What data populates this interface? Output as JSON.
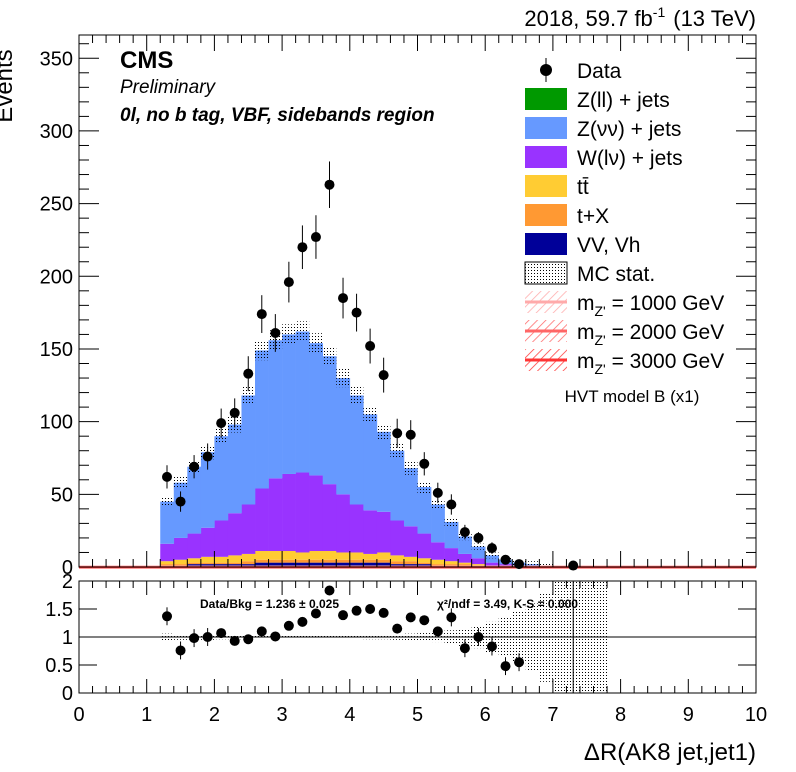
{
  "header": {
    "lumi_prefix": "2018, 59.7 fb",
    "lumi_sup": "-1",
    "lumi_suffix": "(13 TeV)"
  },
  "labels": {
    "cms": "CMS",
    "preliminary": "Preliminary",
    "region": "0l, no b tag, VBF, sidebands region",
    "hvt_note": "HVT model B (x1)",
    "ratio_text": "Data/Bkg = 1.236 ± 0.025",
    "chi2_text": "χ²/ndf = 3.49,   K-S = 0.000"
  },
  "colors": {
    "zll": "#009900",
    "znn": "#6699ff",
    "wln": "#9933ff",
    "ttbar": "#ffcc33",
    "tX": "#ff9933",
    "vv": "#000099",
    "signal1": "#ffaaaa",
    "signal2": "#ff6666",
    "signal3": "#ff3333"
  },
  "chart_data": [
    {
      "type": "bar",
      "title": "",
      "xlabel": "ΔR(AK8 jet,jet1)",
      "ylabel": "Events",
      "xlim": [
        0,
        10
      ],
      "ylim": [
        0,
        366
      ],
      "yticks": [
        0,
        50,
        100,
        150,
        200,
        250,
        300,
        350
      ],
      "xticks": [
        0,
        1,
        2,
        3,
        4,
        5,
        6,
        7,
        8,
        9,
        10
      ],
      "bin_edges": [
        1.2,
        1.4,
        1.6,
        1.8,
        2.0,
        2.2,
        2.4,
        2.6,
        2.8,
        3.0,
        3.2,
        3.4,
        3.6,
        3.8,
        4.0,
        4.2,
        4.4,
        4.6,
        4.8,
        5.0,
        5.2,
        5.4,
        5.6,
        5.8,
        6.0,
        6.2,
        6.4,
        6.6,
        6.8,
        7.0
      ],
      "legend_position": "top-right",
      "legend": [
        {
          "label": "Data",
          "style": "marker"
        },
        {
          "label": "Z(ll) + jets",
          "style": "fill",
          "color": "#009900"
        },
        {
          "label": "Z(νν) + jets",
          "style": "fill",
          "color": "#6699ff"
        },
        {
          "label": "W(lν) + jets",
          "style": "fill",
          "color": "#9933ff"
        },
        {
          "label": "tt̄",
          "style": "fill",
          "color": "#ffcc33"
        },
        {
          "label": "t+X",
          "style": "fill",
          "color": "#ff9933"
        },
        {
          "label": "VV, Vh",
          "style": "fill",
          "color": "#000099"
        },
        {
          "label": "MC stat.",
          "style": "hatch"
        },
        {
          "label": "m",
          "sub": "Z'",
          "rest": " = 1000 GeV",
          "style": "signal",
          "color": "#ffaaaa"
        },
        {
          "label": "m",
          "sub": "Z'",
          "rest": " = 2000 GeV",
          "style": "signal",
          "color": "#ff6666"
        },
        {
          "label": "m",
          "sub": "Z'",
          "rest": " = 3000 GeV",
          "style": "signal",
          "color": "#ff3333"
        }
      ],
      "series": [
        {
          "name": "VV, Vh",
          "values": [
            1,
            1,
            2,
            2,
            2,
            2,
            2,
            3,
            3,
            3,
            3,
            3,
            3,
            3,
            3,
            3,
            3,
            2,
            2,
            2,
            1,
            1,
            1,
            1,
            0,
            0,
            0,
            0,
            0
          ]
        },
        {
          "name": "t+X",
          "values": [
            1,
            1,
            1,
            1,
            1,
            1,
            2,
            2,
            2,
            2,
            2,
            2,
            2,
            2,
            2,
            2,
            2,
            2,
            2,
            1,
            1,
            1,
            1,
            0,
            0,
            0,
            0,
            0,
            0
          ]
        },
        {
          "name": "tt̄",
          "values": [
            2,
            3,
            3,
            4,
            4,
            5,
            5,
            6,
            6,
            6,
            5,
            6,
            6,
            5,
            5,
            4,
            5,
            4,
            3,
            3,
            3,
            2,
            1,
            1,
            1,
            0,
            0,
            0,
            0
          ]
        },
        {
          "name": "W(lν) + jets",
          "values": [
            12,
            15,
            17,
            20,
            25,
            29,
            34,
            43,
            50,
            53,
            55,
            52,
            46,
            40,
            33,
            30,
            28,
            24,
            21,
            17,
            12,
            9,
            6,
            4,
            2,
            2,
            1,
            1,
            0
          ]
        },
        {
          "name": "Z(νν) + jets",
          "values": [
            29,
            38,
            46,
            52,
            58,
            61,
            75,
            95,
            95,
            96,
            97,
            91,
            88,
            80,
            75,
            66,
            55,
            48,
            40,
            32,
            26,
            18,
            12,
            8,
            5,
            3,
            2,
            1,
            1
          ]
        },
        {
          "name": "Z(ll) + jets",
          "values": [
            0,
            0,
            0,
            0,
            0,
            0,
            0,
            0,
            0,
            0,
            0,
            0,
            0,
            0,
            0,
            0,
            0,
            0,
            0,
            0,
            0,
            0,
            0,
            0,
            0,
            0,
            0,
            0,
            0
          ]
        }
      ],
      "data_points": {
        "x": [
          1.3,
          1.5,
          1.7,
          1.9,
          2.1,
          2.3,
          2.5,
          2.7,
          2.9,
          3.1,
          3.3,
          3.5,
          3.7,
          3.9,
          4.1,
          4.3,
          4.5,
          4.7,
          4.9,
          5.1,
          5.3,
          5.5,
          5.7,
          5.9,
          6.1,
          6.3,
          6.5,
          7.3
        ],
        "y": [
          62,
          45,
          69,
          76,
          99,
          106,
          133,
          174,
          161,
          196,
          220,
          227,
          263,
          185,
          175,
          152,
          132,
          92,
          91,
          71,
          51,
          43,
          24,
          20,
          13,
          5,
          2,
          1
        ],
        "err": [
          8,
          7,
          8,
          9,
          10,
          10,
          12,
          13,
          13,
          14,
          15,
          15,
          16,
          14,
          13,
          12,
          12,
          10,
          10,
          8,
          7,
          7,
          5,
          4,
          4,
          2,
          1,
          1
        ]
      },
      "signals": [
        {
          "name": "m_Z' = 1000 GeV",
          "values": [
            0,
            0,
            0,
            0,
            0,
            0,
            0,
            0,
            0,
            0
          ]
        },
        {
          "name": "m_Z' = 2000 GeV",
          "values": [
            0,
            0,
            0,
            0,
            0,
            0,
            0,
            0,
            0,
            0
          ]
        },
        {
          "name": "m_Z' = 3000 GeV",
          "values": [
            0,
            0,
            0,
            0,
            0,
            0,
            0,
            0,
            0,
            0
          ]
        }
      ]
    },
    {
      "type": "scatter",
      "title": "",
      "xlabel": "ΔR(AK8 jet,jet1)",
      "ylabel": "",
      "xlim": [
        0,
        10
      ],
      "ylim": [
        0,
        2
      ],
      "yticks": [
        0,
        0.5,
        1,
        1.5,
        2
      ],
      "xticks": [
        0,
        1,
        2,
        3,
        4,
        5,
        6,
        7,
        8,
        9,
        10
      ],
      "reference_line": 1,
      "x": [
        1.3,
        1.5,
        1.7,
        1.9,
        2.1,
        2.3,
        2.5,
        2.7,
        2.9,
        3.1,
        3.3,
        3.5,
        3.7,
        3.9,
        4.1,
        4.3,
        4.5,
        4.7,
        4.9,
        5.1,
        5.3,
        5.5,
        5.7,
        5.9,
        6.1,
        6.3,
        6.5
      ],
      "y": [
        1.37,
        0.76,
        0.98,
        1.0,
        1.07,
        0.93,
        0.96,
        1.1,
        1.01,
        1.2,
        1.27,
        1.42,
        1.83,
        1.39,
        1.47,
        1.5,
        1.43,
        1.15,
        1.35,
        1.3,
        1.1,
        1.35,
        0.8,
        1.0,
        0.83,
        0.48,
        0.55
      ],
      "uncertainty_band_halfwidth": [
        0.06,
        0.05,
        0.05,
        0.05,
        0.04,
        0.04,
        0.04,
        0.03,
        0.03,
        0.03,
        0.03,
        0.03,
        0.03,
        0.03,
        0.03,
        0.04,
        0.04,
        0.05,
        0.06,
        0.07,
        0.09,
        0.12,
        0.16,
        0.2,
        0.27,
        0.35,
        0.45,
        0.6,
        0.8
      ],
      "lone_point_x": 7.3
    }
  ]
}
